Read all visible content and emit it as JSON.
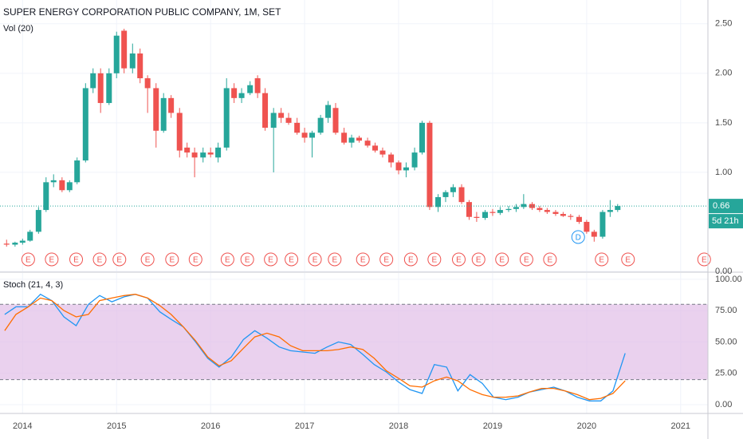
{
  "chart_data": [
    {
      "type": "candlestick",
      "title": "SUPER ENERGY CORPORATION PUBLIC COMPANY, 1M, SET",
      "volume_label": "Vol (20)",
      "x": [
        2013.83,
        2013.92,
        2014.0,
        2014.08,
        2014.17,
        2014.25,
        2014.33,
        2014.42,
        2014.5,
        2014.58,
        2014.67,
        2014.75,
        2014.83,
        2014.92,
        2015.0,
        2015.08,
        2015.17,
        2015.25,
        2015.33,
        2015.42,
        2015.5,
        2015.58,
        2015.67,
        2015.75,
        2015.83,
        2015.92,
        2016.0,
        2016.08,
        2016.17,
        2016.25,
        2016.33,
        2016.42,
        2016.5,
        2016.58,
        2016.67,
        2016.75,
        2016.83,
        2016.92,
        2017.0,
        2017.08,
        2017.17,
        2017.25,
        2017.33,
        2017.42,
        2017.5,
        2017.58,
        2017.67,
        2017.75,
        2017.83,
        2017.92,
        2018.0,
        2018.08,
        2018.17,
        2018.25,
        2018.33,
        2018.42,
        2018.5,
        2018.58,
        2018.67,
        2018.75,
        2018.83,
        2018.92,
        2019.0,
        2019.08,
        2019.17,
        2019.25,
        2019.33,
        2019.42,
        2019.5,
        2019.58,
        2019.67,
        2019.75,
        2019.83,
        2019.92,
        2020.0,
        2020.08,
        2020.17,
        2020.25,
        2020.33
      ],
      "open": [
        0.28,
        0.27,
        0.29,
        0.31,
        0.4,
        0.62,
        0.9,
        0.92,
        0.82,
        0.9,
        1.12,
        1.85,
        2.0,
        1.7,
        2.0,
        2.43,
        2.05,
        2.2,
        1.95,
        1.85,
        1.42,
        1.75,
        1.6,
        1.25,
        1.2,
        1.15,
        1.2,
        1.15,
        1.25,
        1.85,
        1.75,
        1.8,
        1.95,
        1.8,
        1.45,
        1.6,
        1.55,
        1.5,
        1.4,
        1.35,
        1.4,
        1.55,
        1.65,
        1.4,
        1.3,
        1.35,
        1.32,
        1.27,
        1.22,
        1.18,
        1.1,
        1.02,
        1.05,
        1.2,
        1.5,
        0.65,
        0.75,
        0.8,
        0.85,
        0.7,
        0.55,
        0.54,
        0.6,
        0.59,
        0.62,
        0.63,
        0.65,
        0.68,
        0.64,
        0.62,
        0.6,
        0.58,
        0.56,
        0.55,
        0.5,
        0.4,
        0.35,
        0.6,
        0.62
      ],
      "high": [
        0.32,
        0.3,
        0.33,
        0.42,
        0.65,
        0.95,
        0.98,
        0.95,
        0.92,
        1.15,
        1.9,
        2.05,
        2.05,
        2.05,
        2.42,
        2.45,
        2.3,
        2.25,
        1.98,
        1.9,
        1.8,
        1.78,
        1.65,
        1.3,
        1.25,
        1.25,
        1.25,
        1.3,
        1.95,
        1.9,
        1.85,
        1.92,
        1.98,
        1.85,
        1.65,
        1.65,
        1.6,
        1.55,
        1.45,
        1.42,
        1.58,
        1.72,
        1.7,
        1.45,
        1.38,
        1.37,
        1.35,
        1.3,
        1.25,
        1.2,
        1.12,
        1.1,
        1.25,
        1.52,
        1.52,
        0.78,
        0.82,
        0.88,
        0.88,
        0.72,
        0.6,
        0.62,
        0.63,
        0.65,
        0.66,
        0.68,
        0.78,
        0.7,
        0.66,
        0.64,
        0.62,
        0.6,
        0.58,
        0.57,
        0.52,
        0.42,
        0.62,
        0.72,
        0.68
      ],
      "low": [
        0.25,
        0.25,
        0.27,
        0.3,
        0.38,
        0.6,
        0.85,
        0.8,
        0.8,
        0.88,
        1.1,
        1.8,
        1.6,
        1.68,
        1.95,
        2.0,
        2.0,
        1.9,
        1.6,
        1.25,
        1.4,
        1.55,
        1.15,
        1.15,
        0.95,
        1.1,
        1.15,
        1.1,
        1.22,
        1.7,
        1.7,
        1.78,
        1.75,
        1.42,
        1.0,
        1.5,
        1.48,
        1.38,
        1.3,
        1.15,
        1.38,
        1.5,
        1.38,
        1.28,
        1.25,
        1.3,
        1.25,
        1.2,
        1.15,
        1.05,
        0.98,
        0.95,
        1.02,
        1.18,
        0.62,
        0.6,
        0.7,
        0.75,
        0.68,
        0.52,
        0.5,
        0.52,
        0.56,
        0.57,
        0.6,
        0.6,
        0.63,
        0.62,
        0.6,
        0.58,
        0.56,
        0.55,
        0.52,
        0.48,
        0.38,
        0.3,
        0.33,
        0.55,
        0.6
      ],
      "close": [
        0.27,
        0.29,
        0.31,
        0.4,
        0.62,
        0.9,
        0.92,
        0.82,
        0.9,
        1.12,
        1.85,
        2.0,
        1.7,
        2.0,
        2.38,
        2.05,
        2.2,
        1.95,
        1.85,
        1.42,
        1.75,
        1.6,
        1.22,
        1.2,
        1.15,
        1.2,
        1.18,
        1.25,
        1.85,
        1.75,
        1.8,
        1.88,
        1.8,
        1.45,
        1.6,
        1.55,
        1.5,
        1.4,
        1.35,
        1.4,
        1.55,
        1.68,
        1.4,
        1.3,
        1.35,
        1.32,
        1.27,
        1.22,
        1.18,
        1.1,
        1.02,
        1.05,
        1.2,
        1.5,
        0.65,
        0.75,
        0.8,
        0.85,
        0.7,
        0.55,
        0.54,
        0.6,
        0.59,
        0.62,
        0.63,
        0.65,
        0.68,
        0.64,
        0.62,
        0.6,
        0.58,
        0.56,
        0.55,
        0.5,
        0.4,
        0.35,
        0.6,
        0.62,
        0.66
      ],
      "up_color": "#26a69a",
      "down_color": "#ef5350",
      "xlim": [
        2013.76,
        2021.29
      ],
      "ylim": [
        0,
        2.74
      ],
      "yticks": [
        {
          "value": 0,
          "label": "0.00"
        },
        {
          "value": 1,
          "label": "1.00"
        },
        {
          "value": 1.5,
          "label": "1.50"
        },
        {
          "value": 2,
          "label": "2.00"
        },
        {
          "value": 2.5,
          "label": "2.50"
        }
      ],
      "grid": true,
      "last_price": {
        "value": 0.66,
        "label": "0.66"
      },
      "countdown": "5d 21h",
      "events": [
        {
          "x": 2014.06,
          "label": "E",
          "color": "#ef5350"
        },
        {
          "x": 2014.31,
          "label": "E",
          "color": "#ef5350"
        },
        {
          "x": 2014.57,
          "label": "E",
          "color": "#ef5350"
        },
        {
          "x": 2014.82,
          "label": "E",
          "color": "#ef5350"
        },
        {
          "x": 2015.03,
          "label": "E",
          "color": "#ef5350"
        },
        {
          "x": 2015.33,
          "label": "E",
          "color": "#ef5350"
        },
        {
          "x": 2015.59,
          "label": "E",
          "color": "#ef5350"
        },
        {
          "x": 2015.84,
          "label": "E",
          "color": "#ef5350"
        },
        {
          "x": 2016.18,
          "label": "E",
          "color": "#ef5350"
        },
        {
          "x": 2016.39,
          "label": "E",
          "color": "#ef5350"
        },
        {
          "x": 2016.64,
          "label": "E",
          "color": "#ef5350"
        },
        {
          "x": 2016.86,
          "label": "E",
          "color": "#ef5350"
        },
        {
          "x": 2017.11,
          "label": "E",
          "color": "#ef5350"
        },
        {
          "x": 2017.32,
          "label": "E",
          "color": "#ef5350"
        },
        {
          "x": 2017.62,
          "label": "E",
          "color": "#ef5350"
        },
        {
          "x": 2017.87,
          "label": "E",
          "color": "#ef5350"
        },
        {
          "x": 2018.13,
          "label": "E",
          "color": "#ef5350"
        },
        {
          "x": 2018.38,
          "label": "E",
          "color": "#ef5350"
        },
        {
          "x": 2018.64,
          "label": "E",
          "color": "#ef5350"
        },
        {
          "x": 2018.85,
          "label": "E",
          "color": "#ef5350"
        },
        {
          "x": 2019.1,
          "label": "E",
          "color": "#ef5350"
        },
        {
          "x": 2019.36,
          "label": "E",
          "color": "#ef5350"
        },
        {
          "x": 2019.61,
          "label": "E",
          "color": "#ef5350"
        },
        {
          "x": 2019.91,
          "label": "D",
          "color": "#2196f3"
        },
        {
          "x": 2020.16,
          "label": "E",
          "color": "#ef5350"
        },
        {
          "x": 2020.44,
          "label": "E",
          "color": "#ef5350"
        },
        {
          "x": 2021.25,
          "label": "E",
          "color": "#ef5350"
        }
      ]
    },
    {
      "type": "line",
      "title": "Stoch (21, 4, 3)",
      "x": [
        2013.81,
        2013.93,
        2014.06,
        2014.19,
        2014.31,
        2014.44,
        2014.57,
        2014.7,
        2014.82,
        2014.95,
        2015.08,
        2015.2,
        2015.33,
        2015.46,
        2015.58,
        2015.71,
        2015.84,
        2015.97,
        2016.09,
        2016.22,
        2016.35,
        2016.47,
        2016.6,
        2016.73,
        2016.85,
        2016.98,
        2017.11,
        2017.24,
        2017.36,
        2017.49,
        2017.62,
        2017.74,
        2017.87,
        2018.0,
        2018.12,
        2018.25,
        2018.38,
        2018.51,
        2018.63,
        2018.76,
        2018.89,
        2019.01,
        2019.14,
        2019.27,
        2019.39,
        2019.52,
        2019.65,
        2019.77,
        2019.9,
        2020.03,
        2020.15,
        2020.28,
        2020.41
      ],
      "series": [
        {
          "color": "#2196f3",
          "values": [
            72,
            78,
            78,
            88,
            83,
            70,
            63,
            80,
            87,
            82,
            86,
            88,
            85,
            74,
            68,
            62,
            50,
            37,
            30,
            38,
            52,
            59,
            53,
            46,
            43,
            42,
            41,
            46,
            50,
            48,
            40,
            32,
            26,
            18,
            12,
            9,
            32,
            30,
            11,
            24,
            17,
            6,
            4,
            6,
            10,
            12,
            14,
            11,
            6,
            3,
            3,
            11,
            41
          ]
        },
        {
          "color": "#ff6d00",
          "values": [
            59,
            72,
            78,
            85,
            83,
            75,
            70,
            72,
            83,
            85,
            87,
            88,
            85,
            79,
            72,
            62,
            51,
            38,
            31,
            35,
            45,
            54,
            57,
            54,
            47,
            43,
            43,
            43,
            44,
            46,
            44,
            37,
            27,
            21,
            15,
            14,
            19,
            22,
            19,
            12,
            8,
            6,
            6,
            7,
            10,
            13,
            13,
            11,
            8,
            4,
            5,
            9,
            19
          ]
        }
      ],
      "bands": [
        20,
        80
      ],
      "band_color": "#e1bee7",
      "xlim": [
        2013.76,
        2021.29
      ],
      "ylim": [
        -7,
        105
      ],
      "yticks": [
        {
          "value": 0,
          "label": "0.00"
        },
        {
          "value": 25,
          "label": "25.00"
        },
        {
          "value": 50,
          "label": "50.00"
        },
        {
          "value": 75,
          "label": "75.00"
        },
        {
          "value": 100,
          "label": "100.00"
        }
      ],
      "xticks": [
        2014,
        2015,
        2016,
        2017,
        2018,
        2019,
        2020,
        2021
      ],
      "grid": true
    }
  ]
}
